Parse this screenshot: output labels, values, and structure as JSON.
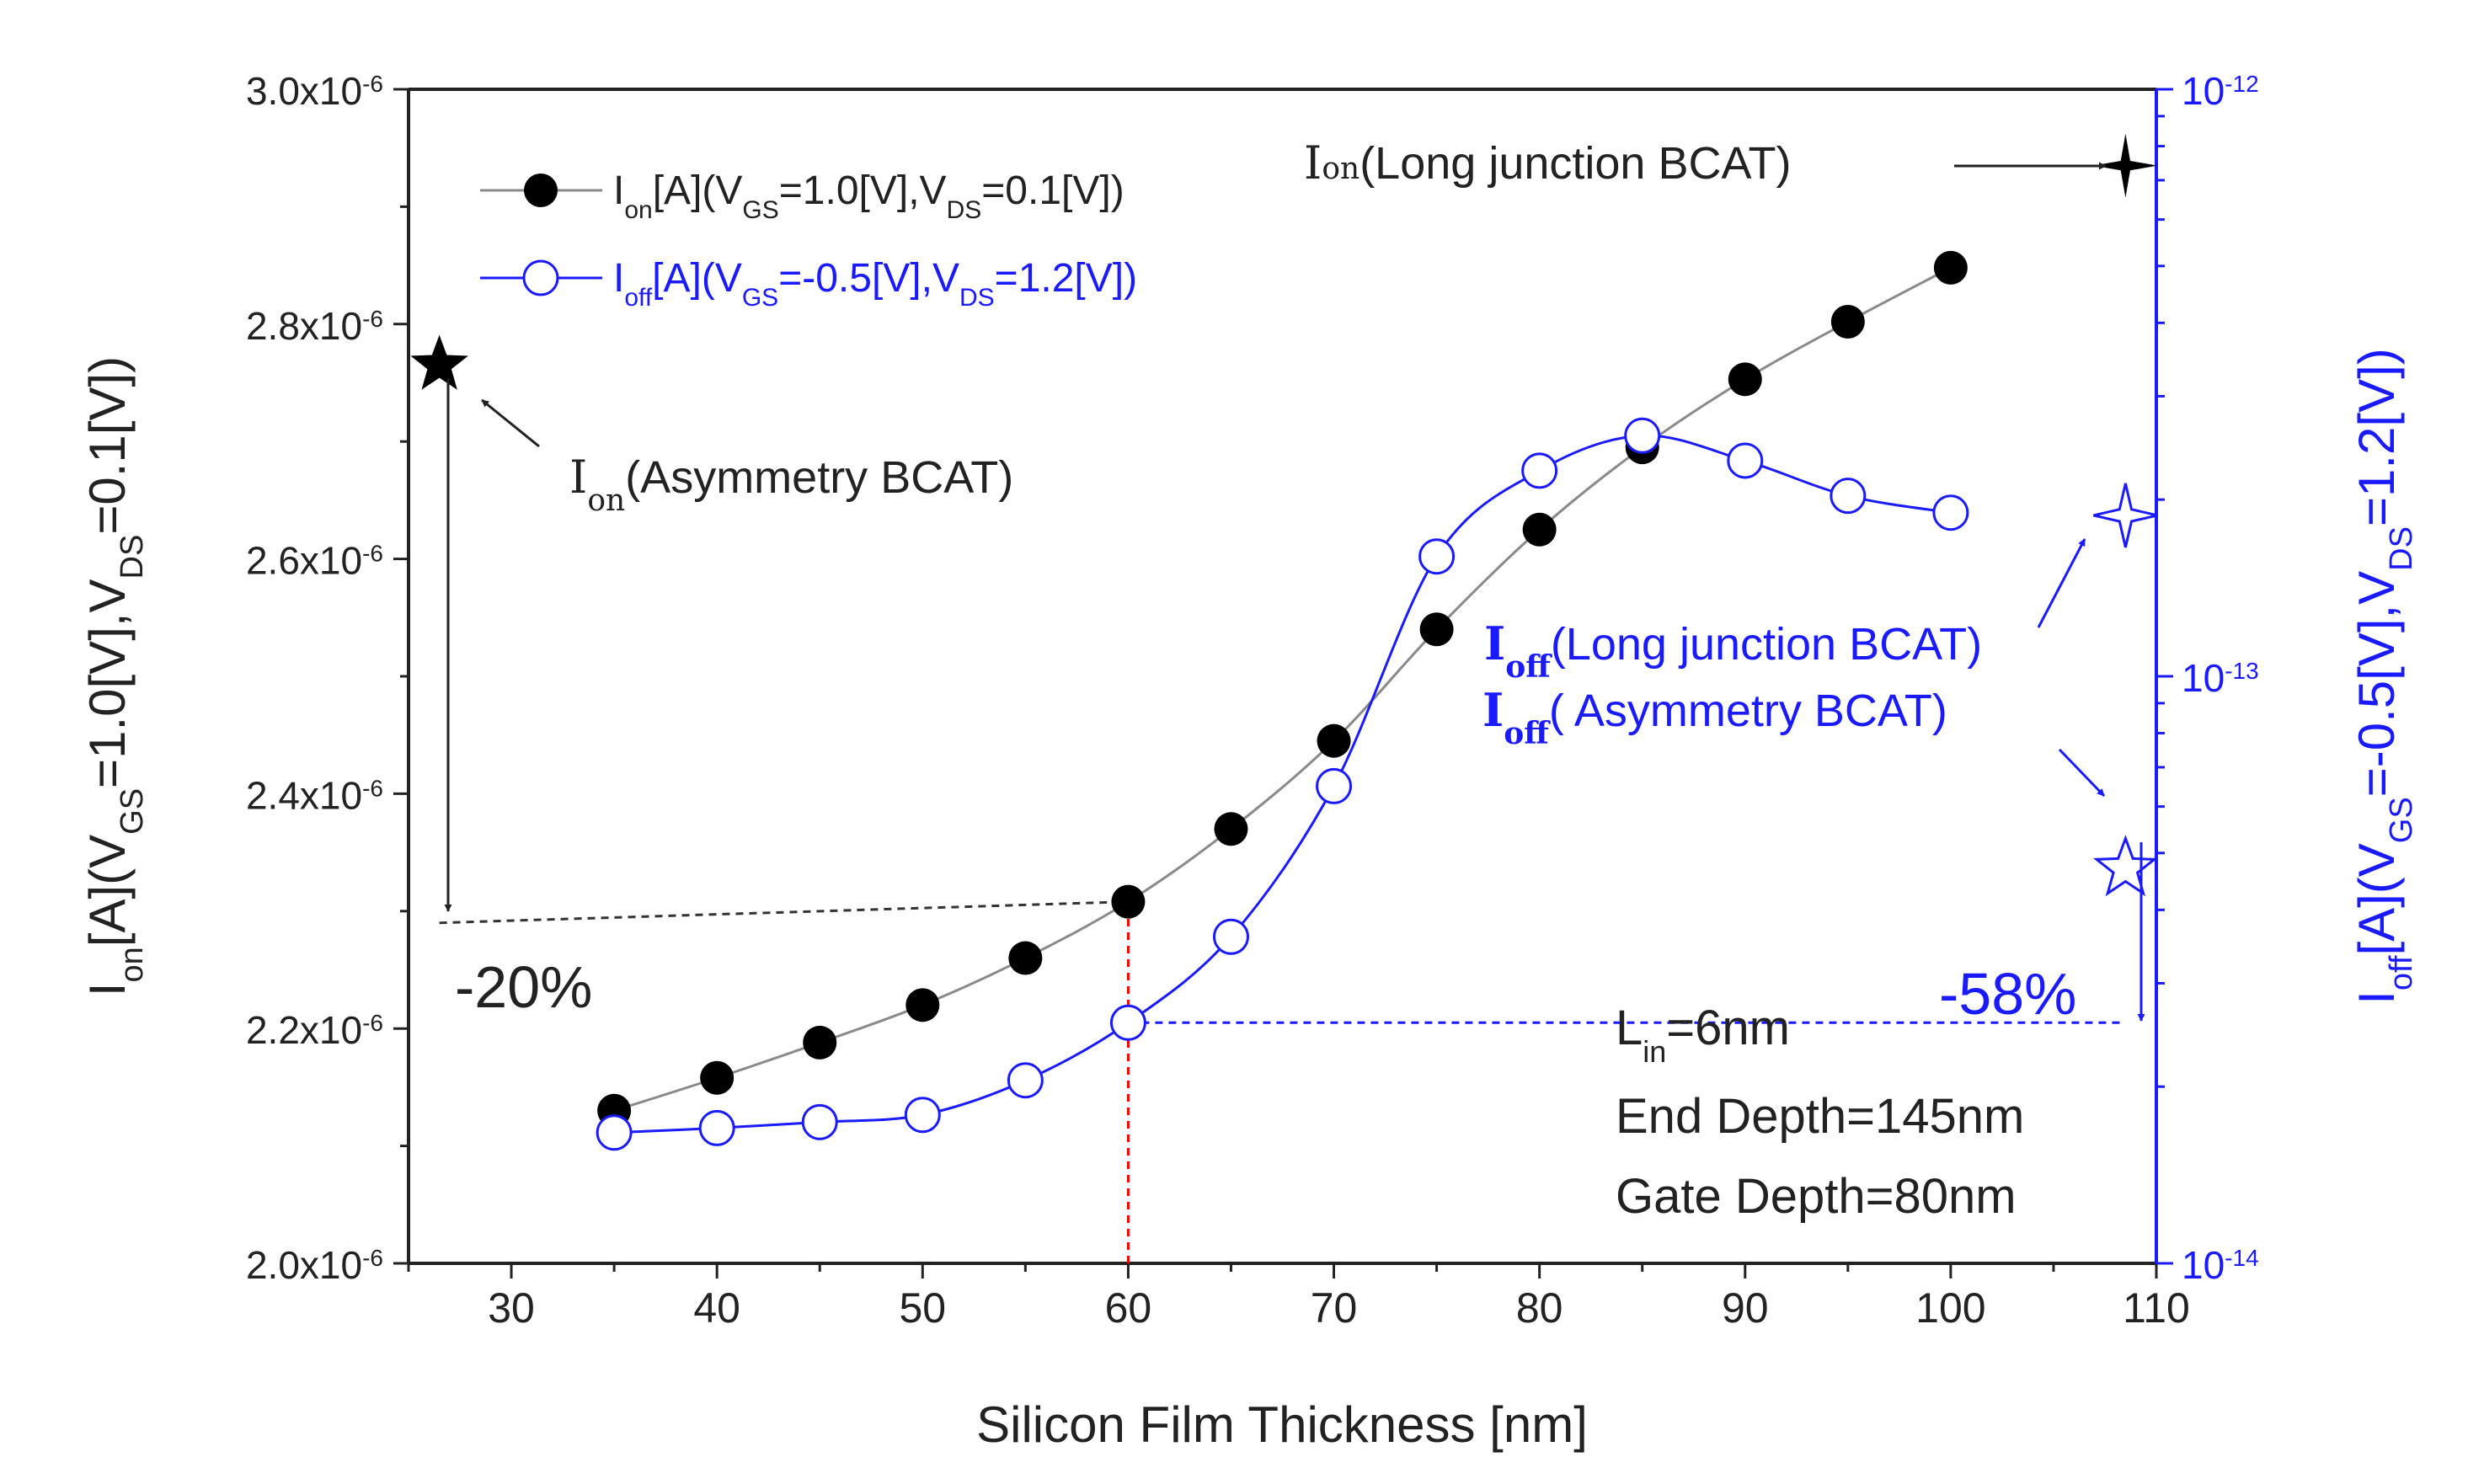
{
  "chart_data": {
    "type": "line",
    "xlabel": "Silicon Film Thickness [nm]",
    "xlim": [
      25,
      110
    ],
    "x_ticks": [
      30,
      40,
      50,
      60,
      70,
      80,
      90,
      100,
      110
    ],
    "y_left": {
      "label_main": "I",
      "label_sub1": "on",
      "label_rest1": "[A](V",
      "label_sub2": "GS",
      "label_rest2": "=1.0[V],V",
      "label_sub3": "DS",
      "label_rest3": "=0.1[V])",
      "lim": [
        2e-06,
        3e-06
      ],
      "ticks": [
        {
          "value": 2e-06,
          "mant": "2.0x10",
          "exp": "-6"
        },
        {
          "value": 2.2e-06,
          "mant": "2.2x10",
          "exp": "-6"
        },
        {
          "value": 2.4e-06,
          "mant": "2.4x10",
          "exp": "-6"
        },
        {
          "value": 2.6e-06,
          "mant": "2.6x10",
          "exp": "-6"
        },
        {
          "value": 2.8e-06,
          "mant": "2.8x10",
          "exp": "-6"
        },
        {
          "value": 3e-06,
          "mant": "3.0x10",
          "exp": "-6"
        }
      ]
    },
    "y_right": {
      "label_main": "I",
      "label_sub1": "off",
      "label_rest1": "[A](V",
      "label_sub2": "GS",
      "label_rest2": "=-0.5[V],V",
      "label_sub3": "DS",
      "label_rest3": "=1.2[V])",
      "scale": "log",
      "lim": [
        1e-14,
        1e-12
      ],
      "ticks": [
        {
          "value": 1e-14,
          "mant": "10",
          "exp": "-14"
        },
        {
          "value": 1e-13,
          "mant": "10",
          "exp": "-13"
        },
        {
          "value": 1e-12,
          "mant": "10",
          "exp": "-12"
        }
      ]
    },
    "x": [
      35,
      40,
      45,
      50,
      55,
      60,
      65,
      70,
      75,
      80,
      85,
      90,
      95,
      100
    ],
    "series": [
      {
        "name": "Ion",
        "axis": "left",
        "color": "#000000",
        "line_color": "#8a8a8a",
        "marker": "filled-circle",
        "legend_main": "I",
        "legend_sub1": "on",
        "legend_rest1": "[A](V",
        "legend_sub2": "GS",
        "legend_rest2": "=1.0[V],V",
        "legend_sub3": "DS",
        "legend_rest3": "=0.1[V])",
        "values": [
          2.13e-06,
          2.158e-06,
          2.188e-06,
          2.22e-06,
          2.26e-06,
          2.308e-06,
          2.37e-06,
          2.445e-06,
          2.54e-06,
          2.625e-06,
          2.695e-06,
          2.753e-06,
          2.802e-06,
          2.848e-06
        ]
      },
      {
        "name": "Ioff",
        "axis": "right",
        "color": "#1a1aff",
        "line_color": "#1a1aff",
        "marker": "open-circle",
        "legend_main": "I",
        "legend_sub1": "off",
        "legend_rest1": "[A](V",
        "legend_sub2": "GS",
        "legend_rest2": "=-0.5[V],V",
        "legend_sub3": "DS",
        "legend_rest3": "=1.2[V])",
        "values": [
          1.67e-14,
          1.7e-14,
          1.74e-14,
          1.79e-14,
          2.05e-14,
          2.57e-14,
          3.6e-14,
          6.5e-14,
          1.6e-13,
          2.24e-13,
          2.57e-13,
          2.33e-13,
          2.03e-13,
          1.9e-13
        ]
      }
    ],
    "reference_points": [
      {
        "name": "Ion Asymmetry BCAT",
        "axis": "left",
        "x": 26.5,
        "y": 2.765e-06,
        "marker": "filled-star",
        "color": "#000000"
      },
      {
        "name": "Ion Long junction BCAT",
        "axis": "left",
        "x": 108.5,
        "y": 2.935e-06,
        "marker": "filled-4point-star",
        "color": "#000000"
      },
      {
        "name": "Ioff Long junction BCAT",
        "axis": "right",
        "x": 108.5,
        "y": 1.88e-13,
        "marker": "open-4point-star",
        "color": "#1a1aff"
      },
      {
        "name": "Ioff Asymmetry BCAT",
        "axis": "right",
        "x": 108.5,
        "y": 4.7e-14,
        "marker": "open-star",
        "color": "#1a1aff"
      }
    ],
    "guides": [
      {
        "name": "ion-dashed-line",
        "axis": "left",
        "x1": 26.5,
        "y1": 2.29e-06,
        "x2": 60,
        "y2": 2.308e-06,
        "color": "#333333"
      },
      {
        "name": "red-vertical-dashed-line",
        "axis": "left",
        "x1": 60,
        "y1": 2e-06,
        "x2": 60,
        "y2": 2.308e-06,
        "color": "#ff0000"
      },
      {
        "name": "ioff-dashed-line",
        "axis": "right",
        "x1": 60,
        "y1": 2.57e-14,
        "x2": 108.5,
        "y2": 2.57e-14,
        "color": "#1a1aff"
      }
    ],
    "annotations": {
      "ion_asym_label_main": "I",
      "ion_asym_label_sub": "on",
      "ion_asym_label_rest": "(Asymmetry BCAT)",
      "ion_long_label_main": "I",
      "ion_long_label_sub": "on",
      "ion_long_label_rest": "(Long junction BCAT)",
      "ioff_long_label_main": "I",
      "ioff_long_label_sub": "off",
      "ioff_long_label_rest": "(Long junction BCAT)",
      "ioff_asym_label_main": "I",
      "ioff_asym_label_sub": "off",
      "ioff_asym_label_rest": "( Asymmetry BCAT)",
      "ion_change": "-20%",
      "ioff_change": "-58%",
      "param_lin_main": "L",
      "param_lin_sub": "in",
      "param_lin_rest": "=6nm",
      "param_end_depth": "End Depth=145nm",
      "param_gate_depth": "Gate Depth=80nm"
    }
  }
}
